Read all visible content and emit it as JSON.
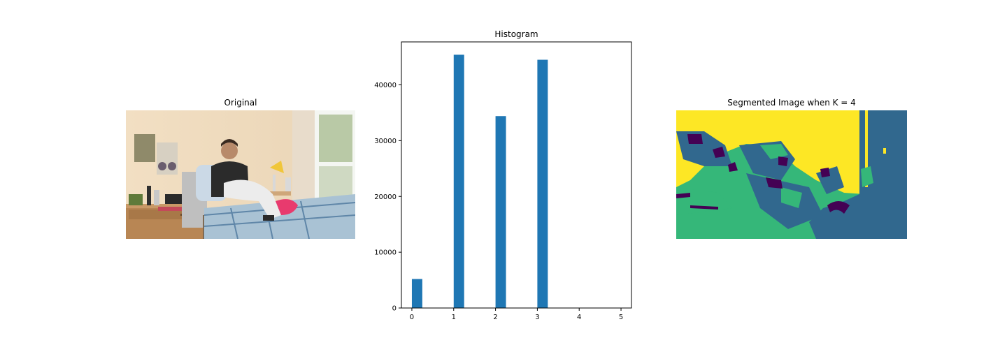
{
  "panels": {
    "original": {
      "title": "Original",
      "icon": "photo-dorm-room"
    },
    "segmented": {
      "title": "Segmented Image when K = 4",
      "palette": [
        "#440154",
        "#31688e",
        "#35b779",
        "#fde725"
      ]
    }
  },
  "chart_data": {
    "type": "bar",
    "title": "Histogram",
    "xlabel": "",
    "ylabel": "",
    "x": [
      0,
      1,
      2,
      3
    ],
    "values": [
      5200,
      45400,
      34400,
      44500
    ],
    "xlim": [
      -0.25,
      5.25
    ],
    "ylim": [
      0,
      47700
    ],
    "xticks": [
      "0",
      "1",
      "2",
      "3",
      "4",
      "5"
    ],
    "yticks": [
      "0",
      "10000",
      "20000",
      "30000",
      "40000"
    ],
    "bar_color": "#1f77b4",
    "grid": false
  }
}
